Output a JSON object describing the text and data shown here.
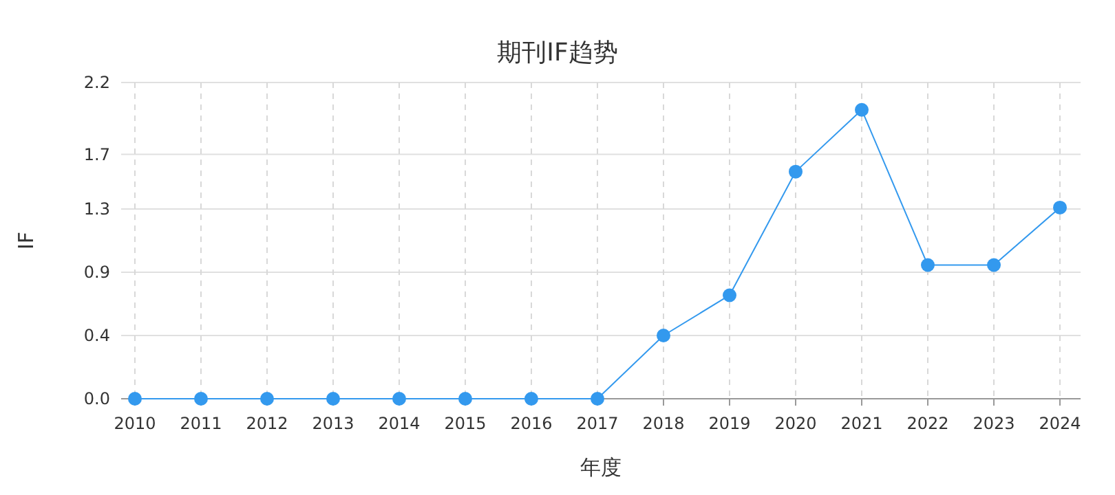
{
  "chart_data": {
    "type": "line",
    "title": "期刊IF趋势",
    "xlabel": "年度",
    "ylabel": "IF",
    "categories": [
      "2010",
      "2011",
      "2012",
      "2013",
      "2014",
      "2015",
      "2016",
      "2017",
      "2018",
      "2019",
      "2020",
      "2021",
      "2022",
      "2023",
      "2024"
    ],
    "series": [
      {
        "color": "#3399ee",
        "values": [
          0,
          0,
          0,
          0,
          0,
          0,
          0,
          0,
          0.44,
          0.72,
          1.58,
          2.01,
          0.93,
          0.93,
          1.33
        ]
      }
    ],
    "ylim": [
      0,
      2.2
    ],
    "yticks": [
      {
        "value": 0,
        "label": "0.0"
      },
      {
        "value": 0.44,
        "label": "0.4"
      },
      {
        "value": 0.88,
        "label": "0.9"
      },
      {
        "value": 1.32,
        "label": "1.3"
      },
      1.7,
      {
        "value": 2.2,
        "label": "2.2"
      }
    ],
    "grid": true,
    "marker": "circle",
    "line_style": "solid"
  }
}
